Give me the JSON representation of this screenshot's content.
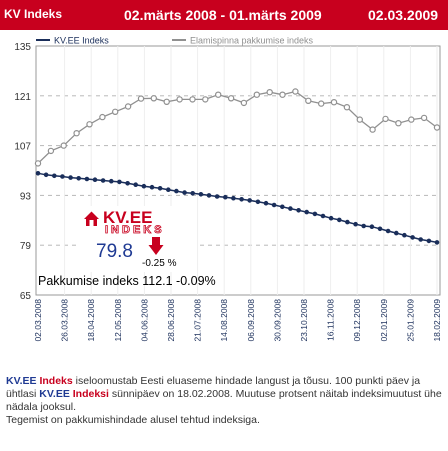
{
  "header": {
    "title": "KV Indeks",
    "period": "02.märts 2008 - 01.märts 2009",
    "date": "02.03.2009"
  },
  "badge": {
    "logo_main": "KV.EE",
    "logo_sub": "INDEKS",
    "value": "79.8",
    "change": "-0.25 %"
  },
  "pakkumise_label": "Pakkumise indeks 112.1 -0.09%",
  "description": {
    "brand": "KV.EE",
    "indeks": "Indeks",
    "indeksi": "Indeksi",
    "text1": " iseloomustab Eesti eluaseme hindade langust ja tõusu. 100 punkti päev ja ühtlasi ",
    "text2": " sünnipäev on 18.02.2008. Muutuse protsent näitab indeksimuutust ühe nädala jooksul.",
    "line3": "Tegemist on pakkumishindade alusel tehtud indeksiga."
  },
  "colors": {
    "header_bg": "#c8001e",
    "kv_series": "#1a2e5a",
    "elamispinna_series": "#909090",
    "brand_blue": "#1f3a93",
    "brand_red": "#c8001e"
  },
  "chart_data": {
    "type": "line",
    "ylim": [
      65,
      135
    ],
    "yticks": [
      65,
      79,
      93,
      107,
      121,
      135
    ],
    "xticks": [
      "02.03.2008",
      "26.03.2008",
      "18.04.2008",
      "12.05.2008",
      "04.06.2008",
      "28.06.2008",
      "21.07.2008",
      "14.08.2008",
      "06.09.2008",
      "30.09.2008",
      "23.10.2008",
      "16.11.2008",
      "09.12.2008",
      "02.01.2009",
      "25.01.2009",
      "18.02.2009"
    ],
    "series": [
      {
        "name": "KV.EE Indeks",
        "values": [
          99.2,
          98.8,
          98.5,
          98.3,
          98.0,
          97.8,
          97.6,
          97.4,
          97.2,
          97.0,
          96.8,
          96.4,
          96.0,
          95.6,
          95.3,
          95.0,
          94.6,
          94.2,
          93.8,
          93.6,
          93.3,
          93.0,
          92.7,
          92.5,
          92.2,
          91.9,
          91.6,
          91.2,
          90.8,
          90.3,
          89.8,
          89.3,
          88.8,
          88.3,
          87.8,
          87.2,
          86.6,
          86.1,
          85.5,
          84.9,
          84.4,
          84.2,
          83.6,
          83.0,
          82.4,
          81.8,
          81.2,
          80.6,
          80.2,
          79.8
        ]
      },
      {
        "name": "Elamispinna pakkumise indeks",
        "values": [
          102,
          105.5,
          107,
          110.5,
          113,
          115,
          116.5,
          118,
          120.2,
          120.3,
          119.3,
          120,
          120,
          120,
          121.3,
          120.3,
          119,
          121.3,
          122,
          121.3,
          122.2,
          119.6,
          118.8,
          119.2,
          117.8,
          114.3,
          111.5,
          114.5,
          113.3,
          114.3,
          114.8,
          112.1
        ]
      }
    ]
  }
}
